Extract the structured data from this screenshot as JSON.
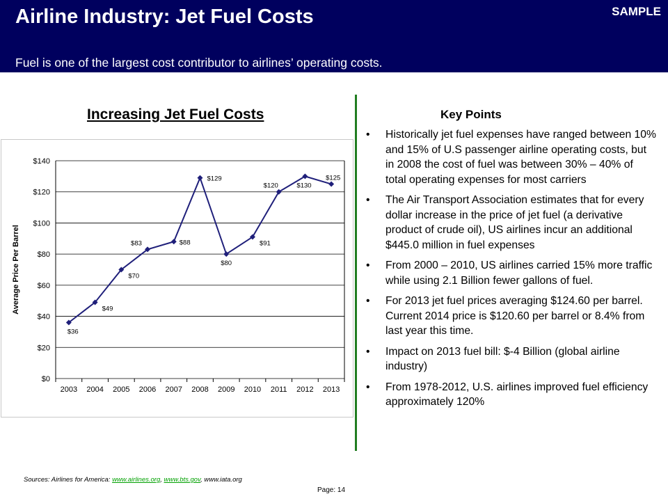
{
  "header": {
    "title": "Airline Industry: Jet Fuel Costs",
    "badge": "SAMPLE",
    "subtitle": "Fuel is one of the largest cost contributor to airlines’ operating costs."
  },
  "chart_title": "Increasing Jet Fuel Costs",
  "chart_data": {
    "type": "line",
    "title": "Increasing Jet Fuel Costs",
    "xlabel": "",
    "ylabel": "Average Price Per Barrel",
    "categories": [
      "2003",
      "2004",
      "2005",
      "2006",
      "2007",
      "2008",
      "2009",
      "2010",
      "2011",
      "2012",
      "2013"
    ],
    "values": [
      36,
      49,
      70,
      83,
      88,
      129,
      80,
      91,
      120,
      130,
      125
    ],
    "data_labels": [
      "$36",
      "$49",
      "$70",
      "$83",
      "$88",
      "$129",
      "$80",
      "$91",
      "$120",
      "$130",
      "$125"
    ],
    "ylim": [
      0,
      140
    ],
    "yticks": [
      0,
      20,
      40,
      60,
      80,
      100,
      120,
      140
    ],
    "ytick_labels": [
      "$0",
      "$20",
      "$40",
      "$60",
      "$80",
      "$100",
      "$120",
      "$140"
    ],
    "grid": true,
    "legend": "none",
    "color": "#1f1f7a"
  },
  "key_points": {
    "title": "Key Points",
    "items": [
      "Historically jet fuel expenses have ranged between 10% and 15% of U.S passenger airline operating costs, but in 2008 the cost of fuel was between 30% – 40% of total operating expenses for most carriers",
      "The Air Transport Association estimates that for every dollar increase in the price of jet fuel (a derivative product of crude oil), US airlines incur an additional $445.0 million in fuel expenses",
      "From 2000 – 2010, US airlines carried 15% more traffic while using 2.1 Billion fewer gallons of fuel.",
      "For 2013 jet fuel prices averaging $124.60 per barrel.  Current 2014 price is $120.60 per barrel or 8.4% from last year this time.",
      "Impact on 2013 fuel bill:  $-4 Billion (global airline industry)",
      "From 1978-2012, U.S. airlines improved fuel efficiency approximately 120%"
    ]
  },
  "footer": {
    "sources_prefix": "Sources:  Airlines for America: ",
    "link1": "www.airlines.org",
    "sep1": ", ",
    "link2": "www.bts.gov",
    "sep2": ", www.iata.org",
    "page": "Page: 14"
  },
  "colors": {
    "header_bg": "#00005e",
    "divider": "#217d21",
    "series": "#1f1f7a",
    "link": "#00a000"
  }
}
